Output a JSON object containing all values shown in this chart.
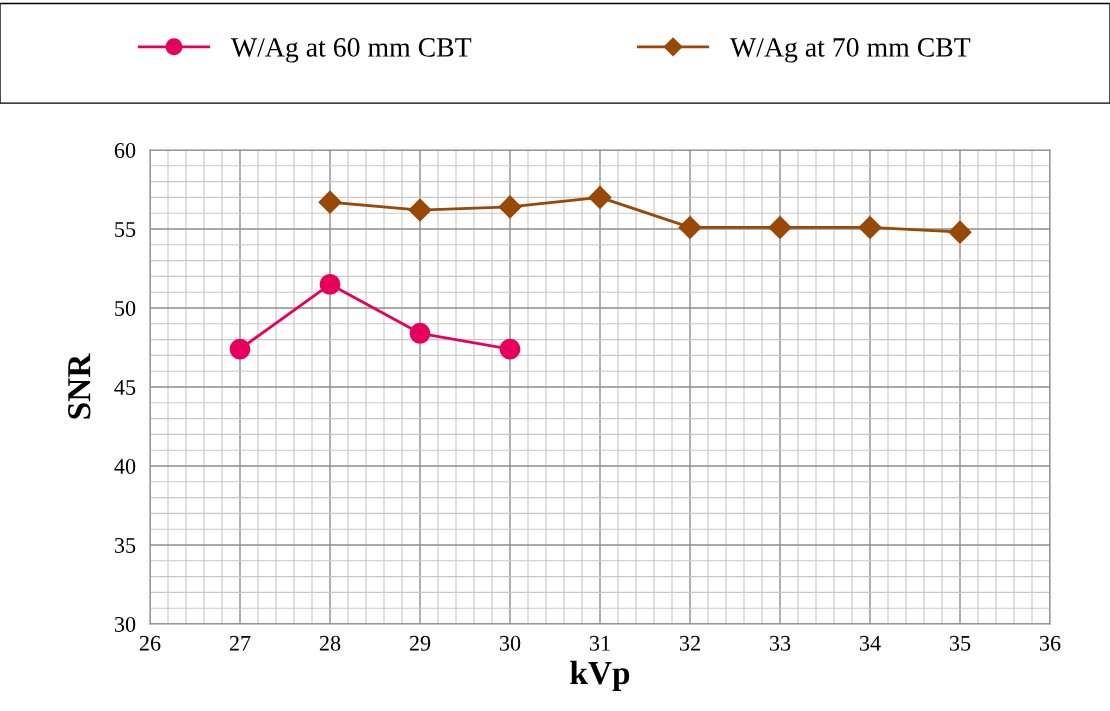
{
  "chart_data": {
    "type": "line",
    "xlabel": "kVp",
    "ylabel": "SNR",
    "series": [
      {
        "name": "W/Ag at 60 mm CBT",
        "color": "#e6005c",
        "marker": "circle",
        "x": [
          27,
          28,
          29,
          30
        ],
        "values": [
          47.4,
          51.5,
          48.4,
          47.4
        ]
      },
      {
        "name": "W/Ag at 70 mm CBT",
        "color": "#984807",
        "marker": "diamond",
        "x": [
          28,
          29,
          30,
          31,
          32,
          33,
          34,
          35
        ],
        "values": [
          56.7,
          56.2,
          56.4,
          57.0,
          55.1,
          55.1,
          55.1,
          54.8
        ]
      }
    ],
    "xlim": [
      26,
      36
    ],
    "xticks": [
      26,
      27,
      28,
      29,
      30,
      31,
      32,
      33,
      34,
      35,
      36
    ],
    "ylim": [
      30,
      60
    ],
    "yticks": [
      30,
      35,
      40,
      45,
      50,
      55,
      60
    ],
    "grid": true,
    "legend": "top",
    "line_style": "solid"
  }
}
